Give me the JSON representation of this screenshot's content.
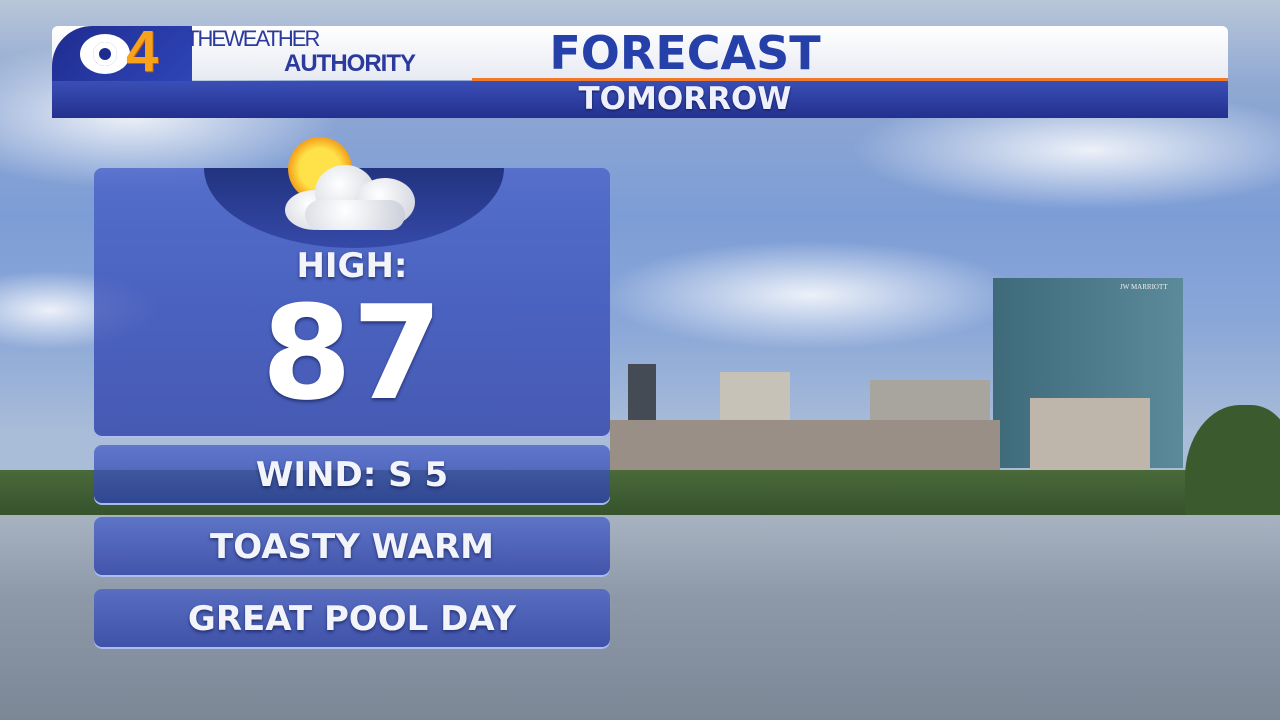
{
  "header": {
    "station_logo": "CBS 4",
    "brand": {
      "line1": "THEWEATHER",
      "line2": "AUTHORITY"
    },
    "title": "FORECAST",
    "subtitle": "TOMORROW"
  },
  "forecast": {
    "icon": "partly-sunny-icon",
    "high_label": "HIGH:",
    "high_value": "87",
    "wind": "WIND: S 5",
    "line1": "TOASTY WARM",
    "line2": "GREAT POOL DAY"
  },
  "background": {
    "building_sign": "JW MARRIOTT"
  },
  "colors": {
    "panel": "#3c55b8",
    "header_blue": "#2540a8",
    "accent_orange": "#f07a2a",
    "logo_four": "#f7a21b"
  }
}
